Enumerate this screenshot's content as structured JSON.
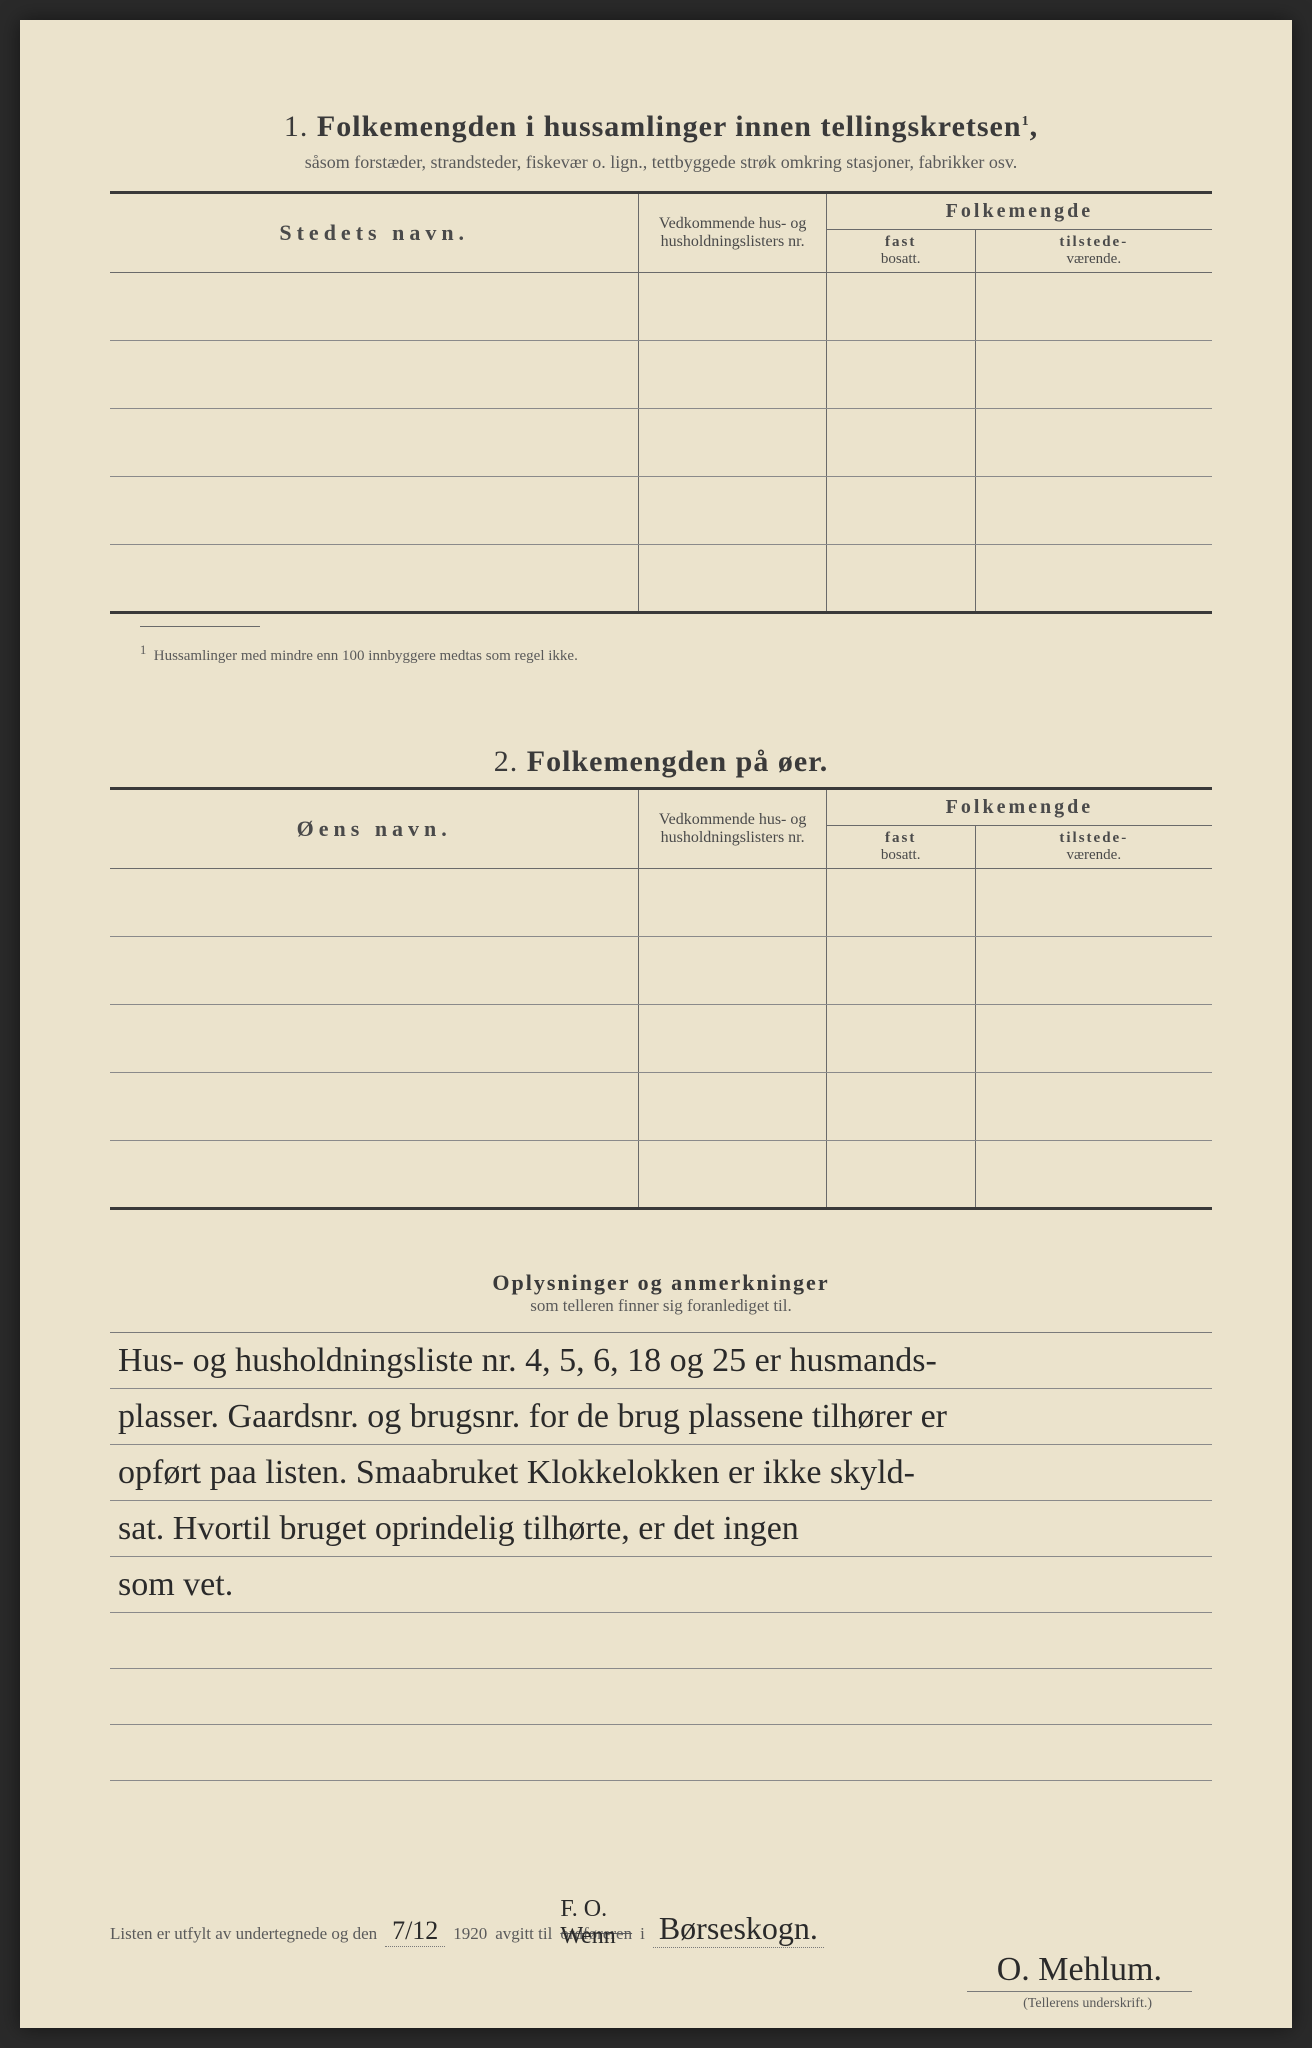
{
  "section1": {
    "number": "1.",
    "title": "Folkemengden i hussamlinger innen tellingskretsen",
    "sup": "1",
    "subtitle": "såsom forstæder, strandsteder, fiskevær o. lign., tettbyggede strøk omkring stasjoner, fabrikker osv.",
    "col_name": "Stedets navn.",
    "col_list": "Vedkommende hus- og husholdningslisters nr.",
    "col_folk": "Folkemengde",
    "col_fast": "fast",
    "col_bosatt": "bosatt.",
    "col_tilstede": "tilstede-",
    "col_vaerende": "værende.",
    "footnote_marker": "1",
    "footnote": "Hussamlinger med mindre enn 100 innbyggere medtas som regel ikke."
  },
  "section2": {
    "number": "2.",
    "title": "Folkemengden på øer.",
    "col_name": "Øens navn."
  },
  "section3": {
    "title": "Oplysninger og anmerkninger",
    "subtitle": "som telleren finner sig foranlediget til.",
    "lines": [
      "Hus- og husholdningsliste nr. 4, 5, 6, 18 og 25 er husmands-",
      "plasser. Gaardsnr. og brugsnr. for de brug plassene tilhører er",
      "opført paa listen. Smaabruket Klokkelokken er ikke skyld-",
      "sat. Hvortil bruget oprindelig tilhørte, er det ingen",
      "som vet.",
      "",
      "",
      ""
    ]
  },
  "footer": {
    "text1": "Listen er utfylt av undertegnede og den",
    "date": "7/12",
    "year": "1920",
    "text2": "avgitt til",
    "strike": "ordføreren",
    "text3": "i",
    "above": "F. O. Wenn",
    "place": "Børseskogn.",
    "signature": "O. Mehlum.",
    "sig_label": "(Tellerens underskrift.)"
  },
  "style": {
    "paper_bg": "#ebe3cc",
    "text_color": "#3a3a3a",
    "muted_color": "#5a5a5a",
    "line_color": "#6a6a6a",
    "handwriting_color": "#2a2a2a"
  }
}
